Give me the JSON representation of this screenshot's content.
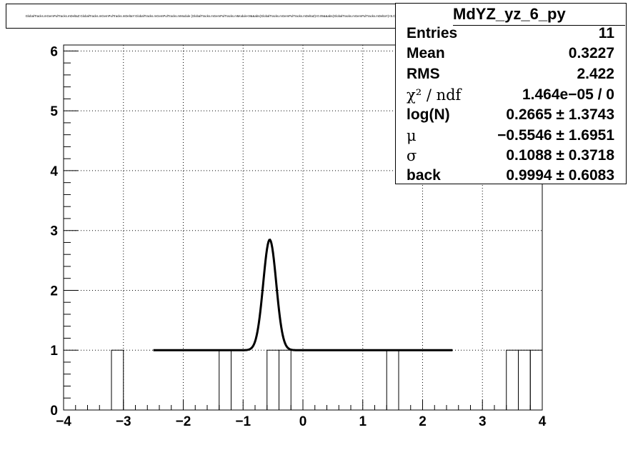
{
  "title": "GlobalTracks.mGemPulTracks.mDeltaZ:GlobalTracks.mGemPulTracks.mDeltaY:GlobalTracks.mGemPulTracks.mModule {GlobalTracks.mGemPulTracks.mModule<8&&abs(GlobalTracks.mGemPulTracks.mDeltaZ)<0.05&&abs(GlobalTracks.mGemPulTracks.mDeltaY)<5.0} yz projection",
  "stats": {
    "name": "MdYZ_yz_6_py",
    "rows": [
      {
        "label": "Entries",
        "value": "11"
      },
      {
        "label": "Mean",
        "value": "0.3227"
      },
      {
        "label": "RMS",
        "value": "2.422"
      },
      {
        "label": "χ² / ndf",
        "value": "1.464e−05 / 0"
      },
      {
        "label": "log(N)",
        "value": "0.2665 ± 1.3743"
      },
      {
        "label": "μ",
        "value": "−0.5546 ± 1.6951"
      },
      {
        "label": "σ",
        "value": "0.1088 ± 0.3718"
      },
      {
        "label": "back",
        "value": "0.9994 ± 0.6083"
      }
    ]
  },
  "chart_data": {
    "type": "bar",
    "title": "",
    "xlabel": "",
    "ylabel": "",
    "xlim": [
      -4,
      4
    ],
    "ylim": [
      0,
      6.1
    ],
    "grid": true,
    "x_ticks": [
      -4,
      -3,
      -2,
      -1,
      0,
      1,
      2,
      3,
      4
    ],
    "x_tick_labels": [
      "−4",
      "−3",
      "−2",
      "−1",
      "0",
      "1",
      "2",
      "3",
      "4"
    ],
    "y_ticks": [
      0,
      1,
      2,
      3,
      4,
      5,
      6
    ],
    "y_tick_labels": [
      "0",
      "1",
      "2",
      "3",
      "4",
      "5",
      "6"
    ],
    "histogram": {
      "bin_width": 0.2,
      "filled_bins": [
        {
          "x_low": -3.2,
          "count": 1
        },
        {
          "x_low": -1.4,
          "count": 1
        },
        {
          "x_low": -0.6,
          "count": 1
        },
        {
          "x_low": -0.4,
          "count": 1
        },
        {
          "x_low": 1.4,
          "count": 1
        },
        {
          "x_low": 3.4,
          "count": 1
        },
        {
          "x_low": 3.6,
          "count": 1
        },
        {
          "x_low": 3.8,
          "count": 1
        }
      ]
    },
    "fit": {
      "function": "gaussian + constant",
      "log_n": 0.2665,
      "mu": -0.5546,
      "sigma": 0.1088,
      "back": 0.9994,
      "range": [
        -2.5,
        2.5
      ]
    }
  }
}
